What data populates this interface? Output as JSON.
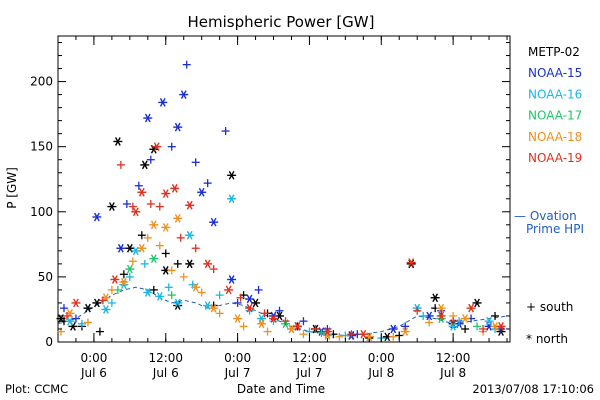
{
  "chart_data": {
    "type": "scatter",
    "title": "Hemispheric Power [GW]",
    "ylabel": "P [GW]",
    "xlabel": "Date and Time",
    "ylim": [
      0,
      235
    ],
    "yticks": [
      0,
      50,
      100,
      150,
      200
    ],
    "xlim": [
      "2013-07-05 18:00",
      "2013-07-08 21:30"
    ],
    "xticks": [
      {
        "t": "2013-07-06 00:00",
        "time": "0:00",
        "day": "Jul 6"
      },
      {
        "t": "2013-07-06 12:00",
        "time": "12:00",
        "day": "Jul 6"
      },
      {
        "t": "2013-07-07 00:00",
        "time": "0:00",
        "day": "Jul 7"
      },
      {
        "t": "2013-07-07 12:00",
        "time": "12:00",
        "day": "Jul 7"
      },
      {
        "t": "2013-07-08 00:00",
        "time": "0:00",
        "day": "Jul 8"
      },
      {
        "t": "2013-07-08 12:00",
        "time": "12:00",
        "day": "Jul 8"
      }
    ],
    "grid": false,
    "legend_position": "right",
    "marker_legend": {
      "south": "+ south",
      "north": "* north"
    },
    "ovation": {
      "label_line1": "— Ovation",
      "label_line2": "Prime HPI",
      "color": "#1f5fbf",
      "points": [
        [
          "2013-07-05 18:00",
          14
        ],
        [
          "2013-07-05 21:00",
          18
        ],
        [
          "2013-07-05 23:00",
          24
        ],
        [
          "2013-07-06 01:00",
          30
        ],
        [
          "2013-07-06 03:00",
          36
        ],
        [
          "2013-07-06 05:00",
          40
        ],
        [
          "2013-07-06 07:00",
          42
        ],
        [
          "2013-07-06 09:00",
          40
        ],
        [
          "2013-07-06 11:00",
          34
        ],
        [
          "2013-07-06 13:00",
          30
        ],
        [
          "2013-07-06 15:00",
          32
        ],
        [
          "2013-07-06 17:00",
          30
        ],
        [
          "2013-07-06 19:00",
          26
        ],
        [
          "2013-07-06 21:00",
          28
        ],
        [
          "2013-07-06 23:00",
          30
        ],
        [
          "2013-07-07 01:00",
          28
        ],
        [
          "2013-07-07 03:00",
          24
        ],
        [
          "2013-07-07 05:00",
          20
        ],
        [
          "2013-07-07 07:00",
          16
        ],
        [
          "2013-07-07 09:00",
          12
        ],
        [
          "2013-07-07 12:00",
          8
        ],
        [
          "2013-07-07 15:00",
          6
        ],
        [
          "2013-07-07 18:00",
          5
        ],
        [
          "2013-07-07 21:00",
          6
        ],
        [
          "2013-07-08 00:00",
          8
        ],
        [
          "2013-07-08 03:00",
          12
        ],
        [
          "2013-07-08 06:00",
          20
        ],
        [
          "2013-07-08 09:00",
          18
        ],
        [
          "2013-07-08 12:00",
          14
        ],
        [
          "2013-07-08 15:00",
          16
        ],
        [
          "2013-07-08 18:00",
          18
        ],
        [
          "2013-07-08 21:00",
          20
        ]
      ]
    },
    "series": [
      {
        "name": "METP-02",
        "color": "#000000",
        "north": [
          [
            "2013-07-05 18:30",
            18
          ],
          [
            "2013-07-05 20:30",
            12
          ],
          [
            "2013-07-05 23:00",
            26
          ],
          [
            "2013-07-06 00:30",
            30
          ],
          [
            "2013-07-06 03:00",
            104
          ],
          [
            "2013-07-06 04:00",
            154
          ],
          [
            "2013-07-06 06:00",
            72
          ],
          [
            "2013-07-06 08:30",
            136
          ],
          [
            "2013-07-06 10:00",
            148
          ],
          [
            "2013-07-06 12:00",
            55
          ],
          [
            "2013-07-06 14:00",
            28
          ],
          [
            "2013-07-06 16:00",
            60
          ],
          [
            "2013-07-06 23:00",
            128
          ],
          [
            "2013-07-07 03:00",
            30
          ],
          [
            "2013-07-07 07:00",
            20
          ],
          [
            "2013-07-07 13:00",
            10
          ],
          [
            "2013-07-07 19:00",
            5
          ],
          [
            "2013-07-08 01:00",
            4
          ],
          [
            "2013-07-08 05:00",
            60
          ],
          [
            "2013-07-08 09:00",
            34
          ],
          [
            "2013-07-08 12:00",
            14
          ],
          [
            "2013-07-08 16:00",
            30
          ],
          [
            "2013-07-08 20:00",
            8
          ]
        ],
        "south": [
          [
            "2013-07-05 19:00",
            16
          ],
          [
            "2013-07-05 22:00",
            12
          ],
          [
            "2013-07-06 01:00",
            8
          ],
          [
            "2013-07-06 05:00",
            52
          ],
          [
            "2013-07-06 08:00",
            82
          ],
          [
            "2013-07-06 10:00",
            40
          ],
          [
            "2013-07-06 12:00",
            68
          ],
          [
            "2013-07-06 14:00",
            60
          ],
          [
            "2013-07-06 20:00",
            28
          ],
          [
            "2013-07-07 01:00",
            36
          ],
          [
            "2013-07-07 05:00",
            22
          ],
          [
            "2013-07-07 10:00",
            12
          ],
          [
            "2013-07-07 16:00",
            6
          ],
          [
            "2013-07-07 22:00",
            3
          ],
          [
            "2013-07-08 03:00",
            5
          ],
          [
            "2013-07-08 09:00",
            26
          ],
          [
            "2013-07-08 14:00",
            10
          ],
          [
            "2013-07-08 19:00",
            20
          ]
        ]
      },
      {
        "name": "NOAA-15",
        "color": "#1a2fd0",
        "north": [
          [
            "2013-07-06 00:30",
            96
          ],
          [
            "2013-07-06 04:30",
            72
          ],
          [
            "2013-07-06 09:00",
            172
          ],
          [
            "2013-07-06 11:30",
            184
          ],
          [
            "2013-07-06 14:00",
            165
          ],
          [
            "2013-07-06 15:00",
            190
          ],
          [
            "2013-07-06 18:00",
            115
          ],
          [
            "2013-07-06 20:00",
            92
          ],
          [
            "2013-07-06 23:00",
            48
          ],
          [
            "2013-07-07 02:00",
            33
          ],
          [
            "2013-07-07 06:00",
            20
          ],
          [
            "2013-07-07 10:00",
            12
          ],
          [
            "2013-07-07 14:00",
            8
          ],
          [
            "2013-07-07 19:00",
            5
          ],
          [
            "2013-07-08 02:00",
            10
          ],
          [
            "2013-07-08 08:00",
            20
          ],
          [
            "2013-07-08 13:00",
            14
          ],
          [
            "2013-07-08 18:00",
            12
          ]
        ],
        "south": [
          [
            "2013-07-05 19:00",
            26
          ],
          [
            "2013-07-05 21:00",
            18
          ],
          [
            "2013-07-06 05:30",
            106
          ],
          [
            "2013-07-06 07:30",
            120
          ],
          [
            "2013-07-06 09:30",
            140
          ],
          [
            "2013-07-06 13:00",
            150
          ],
          [
            "2013-07-06 15:30",
            213
          ],
          [
            "2013-07-06 17:00",
            138
          ],
          [
            "2013-07-06 19:00",
            122
          ],
          [
            "2013-07-06 22:00",
            162
          ],
          [
            "2013-07-07 00:00",
            30
          ],
          [
            "2013-07-07 03:30",
            40
          ],
          [
            "2013-07-07 07:00",
            24
          ],
          [
            "2013-07-07 11:00",
            16
          ],
          [
            "2013-07-07 15:00",
            10
          ],
          [
            "2013-07-07 20:00",
            6
          ],
          [
            "2013-07-08 04:00",
            12
          ],
          [
            "2013-07-08 10:00",
            24
          ],
          [
            "2013-07-08 15:00",
            18
          ],
          [
            "2013-07-08 20:00",
            10
          ]
        ]
      },
      {
        "name": "NOAA-16",
        "color": "#19b8e0",
        "north": [
          [
            "2013-07-05 20:00",
            16
          ],
          [
            "2013-07-06 02:00",
            25
          ],
          [
            "2013-07-06 05:00",
            44
          ],
          [
            "2013-07-06 07:00",
            70
          ],
          [
            "2013-07-06 09:00",
            38
          ],
          [
            "2013-07-06 11:00",
            35
          ],
          [
            "2013-07-06 14:00",
            30
          ],
          [
            "2013-07-06 16:00",
            82
          ],
          [
            "2013-07-06 19:00",
            28
          ],
          [
            "2013-07-06 23:00",
            110
          ],
          [
            "2013-07-07 04:00",
            18
          ],
          [
            "2013-07-07 09:00",
            10
          ],
          [
            "2013-07-07 15:00",
            6
          ],
          [
            "2013-07-07 22:00",
            4
          ],
          [
            "2013-07-08 06:00",
            26
          ],
          [
            "2013-07-08 12:00",
            12
          ],
          [
            "2013-07-08 18:00",
            16
          ]
        ],
        "south": [
          [
            "2013-07-05 22:00",
            14
          ],
          [
            "2013-07-06 03:00",
            30
          ],
          [
            "2013-07-06 06:00",
            50
          ],
          [
            "2013-07-06 08:30",
            60
          ],
          [
            "2013-07-06 12:30",
            42
          ],
          [
            "2013-07-06 16:30",
            44
          ],
          [
            "2013-07-06 21:00",
            36
          ],
          [
            "2013-07-07 02:00",
            24
          ],
          [
            "2013-07-07 06:00",
            16
          ],
          [
            "2013-07-07 12:00",
            8
          ],
          [
            "2013-07-07 18:00",
            5
          ],
          [
            "2013-07-08 00:00",
            3
          ],
          [
            "2013-07-08 07:00",
            20
          ],
          [
            "2013-07-08 13:00",
            16
          ],
          [
            "2013-07-08 19:00",
            10
          ]
        ]
      },
      {
        "name": "NOAA-17",
        "color": "#1cc86a",
        "north": [
          [
            "2013-07-06 06:00",
            56
          ],
          [
            "2013-07-06 10:00",
            64
          ],
          [
            "2013-07-07 08:00",
            14
          ],
          [
            "2013-07-08 10:00",
            18
          ]
        ],
        "south": [
          [
            "2013-07-06 04:00",
            40
          ],
          [
            "2013-07-06 13:00",
            36
          ],
          [
            "2013-07-07 14:00",
            7
          ],
          [
            "2013-07-08 16:00",
            12
          ]
        ]
      },
      {
        "name": "NOAA-18",
        "color": "#f0901e",
        "north": [
          [
            "2013-07-05 20:00",
            22
          ],
          [
            "2013-07-06 02:00",
            34
          ],
          [
            "2013-07-06 05:00",
            46
          ],
          [
            "2013-07-06 08:00",
            72
          ],
          [
            "2013-07-06 10:00",
            90
          ],
          [
            "2013-07-06 12:00",
            88
          ],
          [
            "2013-07-06 14:00",
            95
          ],
          [
            "2013-07-06 17:00",
            42
          ],
          [
            "2013-07-06 20:00",
            26
          ],
          [
            "2013-07-07 00:00",
            18
          ],
          [
            "2013-07-07 04:00",
            14
          ],
          [
            "2013-07-07 09:00",
            10
          ],
          [
            "2013-07-07 15:00",
            5
          ],
          [
            "2013-07-07 22:00",
            4
          ],
          [
            "2013-07-08 04:00",
            8
          ],
          [
            "2013-07-08 10:00",
            26
          ],
          [
            "2013-07-08 14:00",
            18
          ],
          [
            "2013-07-08 19:00",
            12
          ]
        ],
        "south": [
          [
            "2013-07-05 18:30",
            8
          ],
          [
            "2013-07-05 23:00",
            15
          ],
          [
            "2013-07-06 03:00",
            40
          ],
          [
            "2013-07-06 06:30",
            62
          ],
          [
            "2013-07-06 09:00",
            80
          ],
          [
            "2013-07-06 11:00",
            74
          ],
          [
            "2013-07-06 13:00",
            55
          ],
          [
            "2013-07-06 15:00",
            50
          ],
          [
            "2013-07-06 18:00",
            38
          ],
          [
            "2013-07-06 21:00",
            22
          ],
          [
            "2013-07-07 01:00",
            12
          ],
          [
            "2013-07-07 05:00",
            8
          ],
          [
            "2013-07-07 11:00",
            6
          ],
          [
            "2013-07-07 17:00",
            4
          ],
          [
            "2013-07-08 02:00",
            4
          ],
          [
            "2013-07-08 08:00",
            15
          ],
          [
            "2013-07-08 12:00",
            20
          ],
          [
            "2013-07-08 17:00",
            8
          ]
        ]
      },
      {
        "name": "NOAA-19",
        "color": "#e0301e",
        "north": [
          [
            "2013-07-05 21:00",
            30
          ],
          [
            "2013-07-06 03:30",
            48
          ],
          [
            "2013-07-06 07:00",
            100
          ],
          [
            "2013-07-06 08:00",
            115
          ],
          [
            "2013-07-06 10:30",
            150
          ],
          [
            "2013-07-06 12:00",
            114
          ],
          [
            "2013-07-06 13:30",
            118
          ],
          [
            "2013-07-06 16:00",
            105
          ],
          [
            "2013-07-06 19:00",
            60
          ],
          [
            "2013-07-06 22:30",
            40
          ],
          [
            "2013-07-07 02:00",
            26
          ],
          [
            "2013-07-07 06:00",
            18
          ],
          [
            "2013-07-07 10:00",
            12
          ],
          [
            "2013-07-07 15:00",
            8
          ],
          [
            "2013-07-07 21:00",
            6
          ],
          [
            "2013-07-08 05:00",
            61
          ],
          [
            "2013-07-08 10:00",
            20
          ],
          [
            "2013-07-08 15:00",
            26
          ],
          [
            "2013-07-08 20:00",
            12
          ]
        ],
        "south": [
          [
            "2013-07-05 19:30",
            20
          ],
          [
            "2013-07-06 01:30",
            32
          ],
          [
            "2013-07-06 04:30",
            136
          ],
          [
            "2013-07-06 06:30",
            104
          ],
          [
            "2013-07-06 09:30",
            106
          ],
          [
            "2013-07-06 11:00",
            104
          ],
          [
            "2013-07-06 14:30",
            80
          ],
          [
            "2013-07-06 17:00",
            72
          ],
          [
            "2013-07-06 20:00",
            56
          ],
          [
            "2013-07-07 00:30",
            34
          ],
          [
            "2013-07-07 04:30",
            22
          ],
          [
            "2013-07-07 08:00",
            16
          ],
          [
            "2013-07-07 13:00",
            10
          ],
          [
            "2013-07-07 19:00",
            6
          ],
          [
            "2013-07-08 06:00",
            24
          ],
          [
            "2013-07-08 12:00",
            16
          ],
          [
            "2013-07-08 17:00",
            10
          ]
        ]
      }
    ]
  },
  "footer": {
    "left": "Plot: CCMC",
    "right": "2013/07/08 17:10:06"
  }
}
